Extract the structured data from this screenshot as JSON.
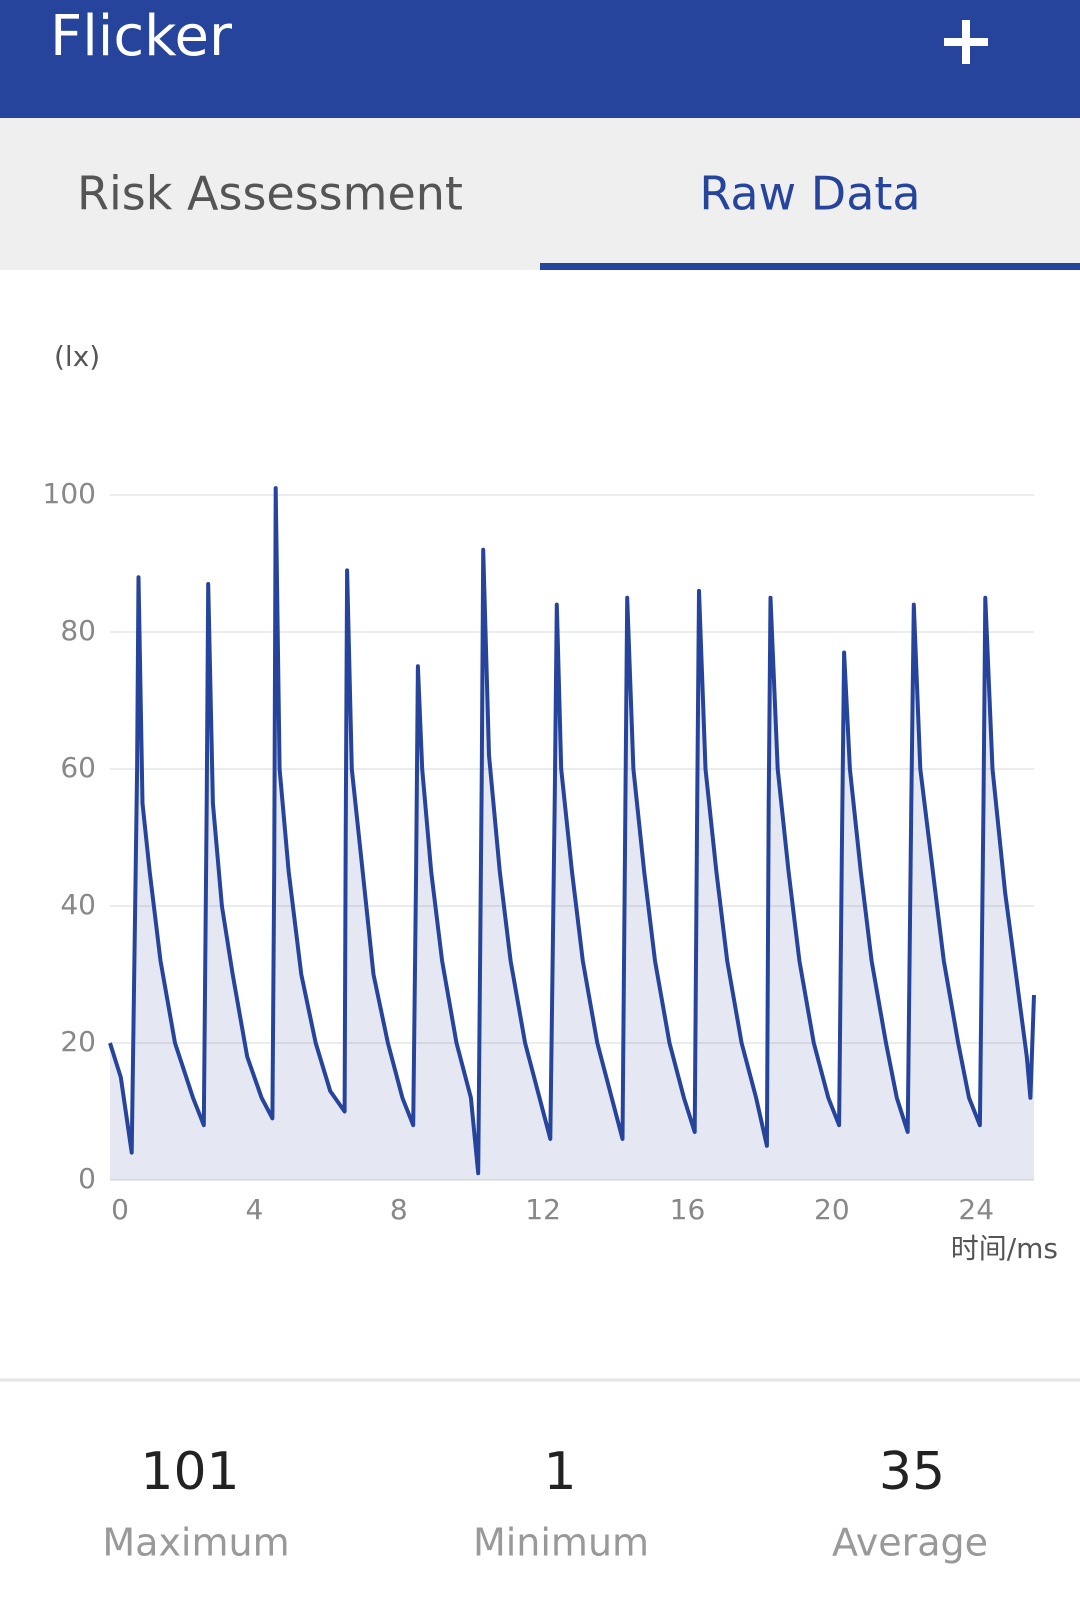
{
  "header": {
    "title": "Flicker"
  },
  "tabs": [
    {
      "label": "Risk Assessment"
    },
    {
      "label": "Raw Data"
    }
  ],
  "chart_data": {
    "type": "line",
    "y_label": "(lx)",
    "x_label": "时间/ms",
    "color": "#26449b",
    "area": true,
    "grid": true,
    "xlim": [
      0,
      25.6
    ],
    "xticks": [
      0,
      4,
      8,
      12,
      16,
      20,
      24
    ],
    "ylim": [
      0,
      100
    ],
    "yticks": [
      0,
      20,
      40,
      60,
      80,
      100
    ],
    "x": [
      0,
      0.3,
      0.6,
      0.75,
      0.79,
      0.9,
      1.1,
      1.4,
      1.8,
      2.3,
      2.6,
      2.68,
      2.72,
      2.85,
      3.1,
      3.4,
      3.8,
      4.2,
      4.5,
      4.55,
      4.59,
      4.7,
      4.95,
      5.3,
      5.7,
      6.1,
      6.5,
      6.53,
      6.57,
      6.7,
      7.0,
      7.3,
      7.7,
      8.1,
      8.4,
      8.48,
      8.53,
      8.65,
      8.9,
      9.2,
      9.6,
      10.0,
      10.2,
      10.3,
      10.34,
      10.5,
      10.8,
      11.1,
      11.5,
      11.9,
      12.2,
      12.32,
      12.38,
      12.5,
      12.8,
      13.1,
      13.5,
      13.9,
      14.2,
      14.28,
      14.33,
      14.5,
      14.8,
      15.1,
      15.5,
      15.9,
      16.2,
      16.27,
      16.32,
      16.5,
      16.8,
      17.1,
      17.5,
      17.9,
      18.2,
      18.25,
      18.3,
      18.5,
      18.8,
      19.1,
      19.5,
      19.9,
      20.2,
      20.28,
      20.34,
      20.5,
      20.8,
      21.1,
      21.5,
      21.8,
      22.1,
      22.2,
      22.27,
      22.45,
      22.8,
      23.1,
      23.5,
      23.8,
      24.1,
      24.2,
      24.25,
      24.45,
      24.8,
      25.1,
      25.4,
      25.5,
      25.6
    ],
    "values": [
      20,
      15,
      4,
      60,
      88,
      55,
      45,
      32,
      20,
      12,
      8,
      55,
      87,
      55,
      40,
      30,
      18,
      12,
      9,
      45,
      101,
      60,
      45,
      30,
      20,
      13,
      10,
      50,
      89,
      60,
      45,
      30,
      20,
      12,
      8,
      45,
      75,
      60,
      45,
      32,
      20,
      12,
      1,
      60,
      92,
      62,
      45,
      32,
      20,
      12,
      6,
      55,
      84,
      60,
      45,
      32,
      20,
      12,
      6,
      55,
      85,
      60,
      45,
      32,
      20,
      12,
      7,
      55,
      86,
      60,
      45,
      32,
      20,
      12,
      5,
      55,
      85,
      60,
      45,
      32,
      20,
      12,
      8,
      50,
      77,
      60,
      45,
      32,
      20,
      12,
      7,
      55,
      84,
      60,
      45,
      32,
      20,
      12,
      8,
      55,
      85,
      60,
      42,
      30,
      18,
      12,
      27
    ]
  },
  "stats": [
    {
      "value": 101,
      "label": "Maximum"
    },
    {
      "value": 1,
      "label": "Minimum"
    },
    {
      "value": 35,
      "label": "Average"
    }
  ]
}
